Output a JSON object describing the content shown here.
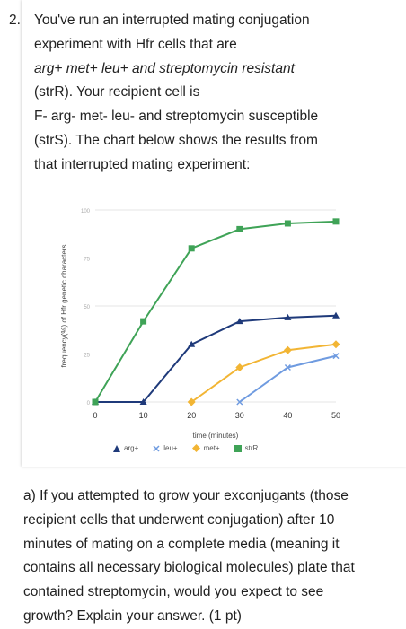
{
  "question": {
    "number": "2.",
    "lines": [
      "You've run an interrupted mating conjugation",
      "experiment with Hfr cells that are",
      "arg+ met+ leu+ and streptomycin resistant",
      "(strR). Your recipient cell is",
      "F- arg- met- leu- and streptomycin susceptible",
      "(strS). The chart below shows the results from",
      "that interrupted mating experiment:"
    ]
  },
  "chart_data": {
    "type": "line",
    "xlabel": "time (minutes)",
    "ylabel": "frequency(%) of Hfr genetic characters",
    "x_ticks": [
      "0",
      "10",
      "20",
      "30",
      "40",
      "50"
    ],
    "y_ticks": [
      "0",
      "25",
      "50",
      "75",
      "100"
    ],
    "xlim": [
      0,
      50
    ],
    "ylim": [
      0,
      100
    ],
    "series": [
      {
        "name": "arg+",
        "color": "#1f3a7a",
        "marker": "triangle",
        "x": [
          0,
          10,
          20,
          30,
          40,
          50
        ],
        "y": [
          0,
          0,
          30,
          42,
          44,
          45
        ]
      },
      {
        "name": "leu+",
        "color": "#6f9be0",
        "marker": "x",
        "x": [
          30,
          40,
          50
        ],
        "y": [
          0,
          18,
          24
        ]
      },
      {
        "name": "met+",
        "color": "#f2b534",
        "marker": "diamond",
        "x": [
          20,
          30,
          40,
          50
        ],
        "y": [
          0,
          18,
          27,
          30
        ]
      },
      {
        "name": "strR",
        "color": "#3fa357",
        "marker": "square",
        "x": [
          0,
          10,
          20,
          30,
          40,
          50
        ],
        "y": [
          0,
          42,
          80,
          90,
          93,
          94
        ]
      }
    ]
  },
  "answer": {
    "lines": [
      "a) If you attempted to grow your exconjugants (those",
      "recipient cells that underwent conjugation) after 10",
      "minutes of mating on a complete media (meaning it",
      "contains all necessary biological molecules) plate that",
      "contained streptomycin, would you expect to see",
      "growth? Explain your answer. (1 pt)"
    ]
  }
}
